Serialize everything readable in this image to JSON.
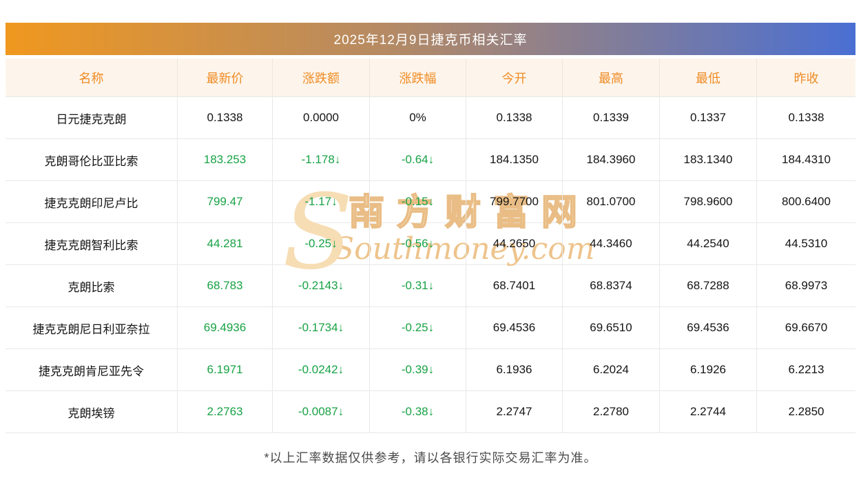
{
  "title": "2025年12月9日捷克币相关汇率",
  "table": {
    "headers": [
      "名称",
      "最新价",
      "涨跌额",
      "涨跌幅",
      "今开",
      "最高",
      "最低",
      "昨收"
    ],
    "rows": [
      {
        "name": "日元捷克克朗",
        "latest": "0.1338",
        "change": "0.0000",
        "pct": "0%",
        "open": "0.1338",
        "high": "0.1339",
        "low": "0.1337",
        "prev": "0.1338",
        "trend": "flat"
      },
      {
        "name": "克朗哥伦比亚比索",
        "latest": "183.253",
        "change": "-1.178↓",
        "pct": "-0.64↓",
        "open": "184.1350",
        "high": "184.3960",
        "low": "183.1340",
        "prev": "184.4310",
        "trend": "down"
      },
      {
        "name": "捷克克朗印尼卢比",
        "latest": "799.47",
        "change": "-1.17↓",
        "pct": "-0.15↓",
        "open": "799.7700",
        "high": "801.0700",
        "low": "798.9600",
        "prev": "800.6400",
        "trend": "down"
      },
      {
        "name": "捷克克朗智利比索",
        "latest": "44.281",
        "change": "-0.25↓",
        "pct": "-0.56↓",
        "open": "44.2650",
        "high": "44.3460",
        "low": "44.2540",
        "prev": "44.5310",
        "trend": "down"
      },
      {
        "name": "克朗比索",
        "latest": "68.783",
        "change": "-0.2143↓",
        "pct": "-0.31↓",
        "open": "68.7401",
        "high": "68.8374",
        "low": "68.7288",
        "prev": "68.9973",
        "trend": "down"
      },
      {
        "name": "捷克克朗尼日利亚奈拉",
        "latest": "69.4936",
        "change": "-0.1734↓",
        "pct": "-0.25↓",
        "open": "69.4536",
        "high": "69.6510",
        "low": "69.4536",
        "prev": "69.6670",
        "trend": "down"
      },
      {
        "name": "捷克克朗肯尼亚先令",
        "latest": "6.1971",
        "change": "-0.0242↓",
        "pct": "-0.39↓",
        "open": "6.1936",
        "high": "6.2024",
        "low": "6.1926",
        "prev": "6.2213",
        "trend": "down"
      },
      {
        "name": "克朗埃镑",
        "latest": "2.2763",
        "change": "-0.0087↓",
        "pct": "-0.38↓",
        "open": "2.2747",
        "high": "2.2780",
        "low": "2.2744",
        "prev": "2.2850",
        "trend": "down"
      }
    ]
  },
  "chart_data": {
    "type": "table",
    "title": "2025年12月9日捷克币相关汇率",
    "columns": [
      "名称",
      "最新价",
      "涨跌额",
      "涨跌幅",
      "今开",
      "最高",
      "最低",
      "昨收"
    ],
    "rows": [
      [
        "日元捷克克朗",
        0.1338,
        0.0,
        "0%",
        0.1338,
        0.1339,
        0.1337,
        0.1338
      ],
      [
        "克朗哥伦比亚比索",
        183.253,
        -1.178,
        "-0.64%",
        184.135,
        184.396,
        183.134,
        184.431
      ],
      [
        "捷克克朗印尼卢比",
        799.47,
        -1.17,
        "-0.15%",
        799.77,
        801.07,
        798.96,
        800.64
      ],
      [
        "捷克克朗智利比索",
        44.281,
        -0.25,
        "-0.56%",
        44.265,
        44.346,
        44.254,
        44.531
      ],
      [
        "克朗比索",
        68.783,
        -0.2143,
        "-0.31%",
        68.7401,
        68.8374,
        68.7288,
        68.9973
      ],
      [
        "捷克克朗尼日利亚奈拉",
        69.4936,
        -0.1734,
        "-0.25%",
        69.4536,
        69.651,
        69.4536,
        69.667
      ],
      [
        "捷克克朗肯尼亚先令",
        6.1971,
        -0.0242,
        "-0.39%",
        6.1936,
        6.2024,
        6.1926,
        6.2213
      ],
      [
        "克朗埃镑",
        2.2763,
        -0.0087,
        "-0.38%",
        2.2747,
        2.278,
        2.2744,
        2.285
      ]
    ]
  },
  "watermark": {
    "logo": "S",
    "cn": "南方财富网",
    "en": "Southmoney.com"
  },
  "footer_note": "*以上汇率数据仅供参考，请以各银行实际交易汇率为准。",
  "colors": {
    "title_gradient_left": "#f0981f",
    "title_gradient_right": "#4a6fd3",
    "title_text": "#ffffff",
    "column_header_bg": "#fdf5ec",
    "column_header_text": "#ef8b23",
    "down_green": "#17a244",
    "cell_text": "#141414",
    "border": "#e8e8e8",
    "watermark_tan": "#eec48c",
    "footer_text": "#4a4a4a"
  }
}
